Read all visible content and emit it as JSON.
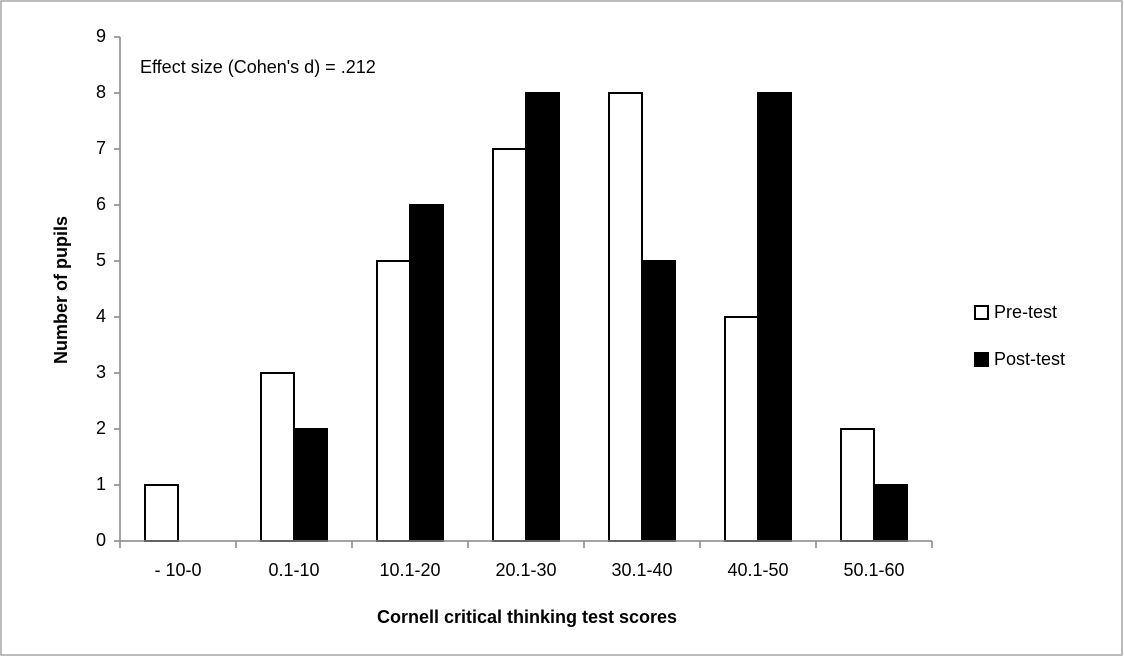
{
  "chart_data": {
    "type": "bar",
    "annotation": "Effect size (Cohen's d) = .212",
    "x_label": "Cornell critical thinking test scores",
    "y_label": "Number of pupils",
    "categories": [
      "- 10-0",
      "0.1-10",
      "10.1-20",
      "20.1-30",
      "30.1-40",
      "40.1-50",
      "50.1-60"
    ],
    "series": [
      {
        "name": "Pre-test",
        "color": "#ffffff",
        "values": [
          1,
          3,
          5,
          7,
          8,
          4,
          2
        ]
      },
      {
        "name": "Post-test",
        "color": "#000000",
        "values": [
          0,
          2,
          6,
          8,
          5,
          8,
          1
        ]
      }
    ],
    "ylim": [
      0,
      9
    ],
    "yticks": [
      0,
      1,
      2,
      3,
      4,
      5,
      6,
      7,
      8,
      9
    ],
    "legend": "right"
  }
}
